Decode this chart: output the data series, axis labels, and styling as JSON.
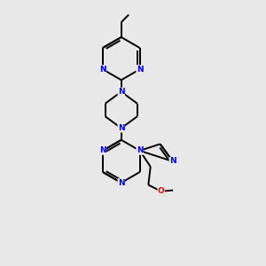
{
  "bg_color": "#e8e8e8",
  "atom_color_N": "#0000ff",
  "atom_color_O": "#ff0000",
  "bond_color": "#000000",
  "bond_width": 1.4,
  "font_size_atom": 6.5,
  "fig_width": 3.0,
  "fig_height": 3.0,
  "dpi": 100,
  "xlim": [
    0,
    10
  ],
  "ylim": [
    0,
    10
  ]
}
